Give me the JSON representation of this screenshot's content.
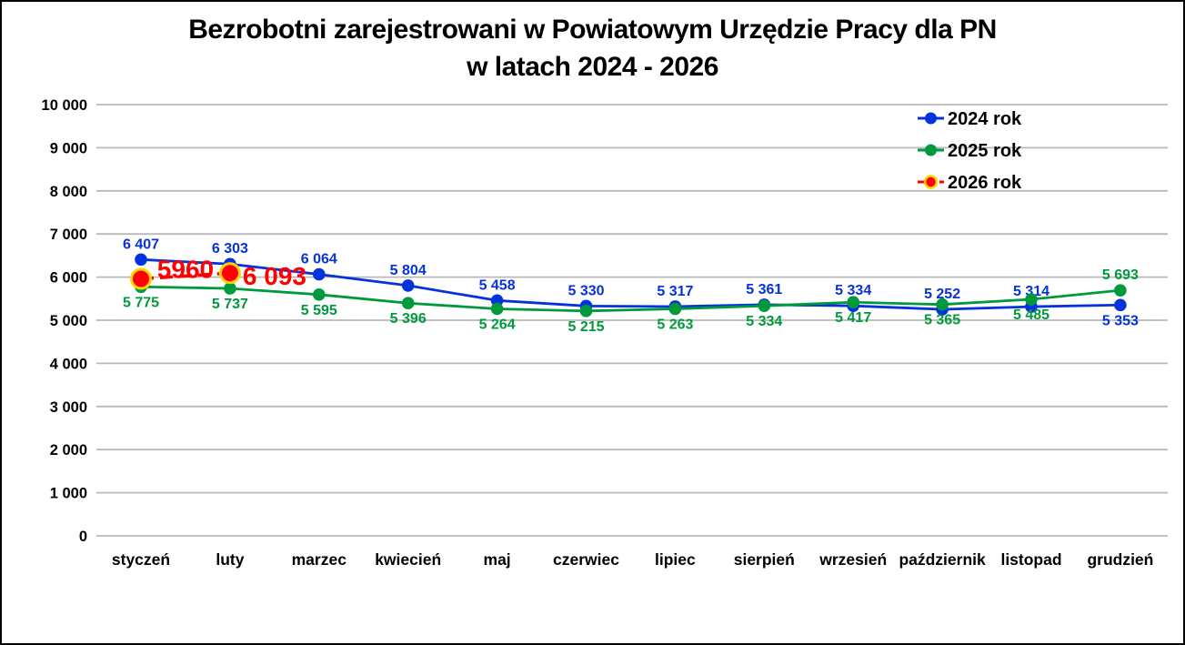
{
  "title": {
    "line1": "Bezrobotni zarejestrowani w Powiatowym Urzędzie Pracy dla PN",
    "line2": "w latach 2024 - 2026"
  },
  "chart_data": {
    "type": "line",
    "title": "Bezrobotni zarejestrowani w Powiatowym Urzędzie Pracy dla PN w latach 2024 - 2026",
    "categories": [
      "styczeń",
      "luty",
      "marzec",
      "kwiecień",
      "maj",
      "czerwiec",
      "lipiec",
      "sierpień",
      "wrzesień",
      "październik",
      "listopad",
      "grudzień"
    ],
    "y_axis": {
      "min": 0,
      "max": 10000,
      "step": 1000,
      "tick_labels": [
        "0",
        "1 000",
        "2 000",
        "3 000",
        "4 000",
        "5 000",
        "6 000",
        "7 000",
        "8 000",
        "9 000",
        "10 000"
      ]
    },
    "grid": true,
    "gridline_color": "#b9b9b9",
    "legend_position": "top-right",
    "series": [
      {
        "name": "2024 rok",
        "color": "#0432dc",
        "line_style": "solid",
        "values": [
          6407,
          6303,
          6064,
          5804,
          5458,
          5330,
          5317,
          5361,
          5334,
          5252,
          5314,
          5353
        ],
        "labels": [
          "6 407",
          "6 303",
          "6 064",
          "5 804",
          "5 458",
          "5 330",
          "5 317",
          "5 361",
          "5 334",
          "5 252",
          "5 314",
          "5 353"
        ],
        "label_side": [
          "above",
          "above",
          "above",
          "above",
          "above",
          "above",
          "above",
          "above",
          "above",
          "above",
          "above",
          "below"
        ]
      },
      {
        "name": "2025 rok",
        "color": "#009a3c",
        "line_style": "solid",
        "values": [
          5775,
          5737,
          5595,
          5396,
          5264,
          5215,
          5263,
          5334,
          5417,
          5365,
          5485,
          5693
        ],
        "labels": [
          "5 775",
          "5 737",
          "5 595",
          "5 396",
          "5 264",
          "5 215",
          "5 263",
          "5 334",
          "5 417",
          "5 365",
          "5 485",
          "5 693"
        ],
        "label_side": [
          "below",
          "below",
          "below",
          "below",
          "below",
          "below",
          "below",
          "below",
          "below",
          "below",
          "below",
          "above"
        ]
      },
      {
        "name": "2026 rok",
        "color": "#ff0000",
        "marker_ring": "#ffd400",
        "line_style": "dashed",
        "values": [
          5960,
          6093
        ],
        "labels": [
          "5960",
          "6 093"
        ]
      }
    ]
  }
}
